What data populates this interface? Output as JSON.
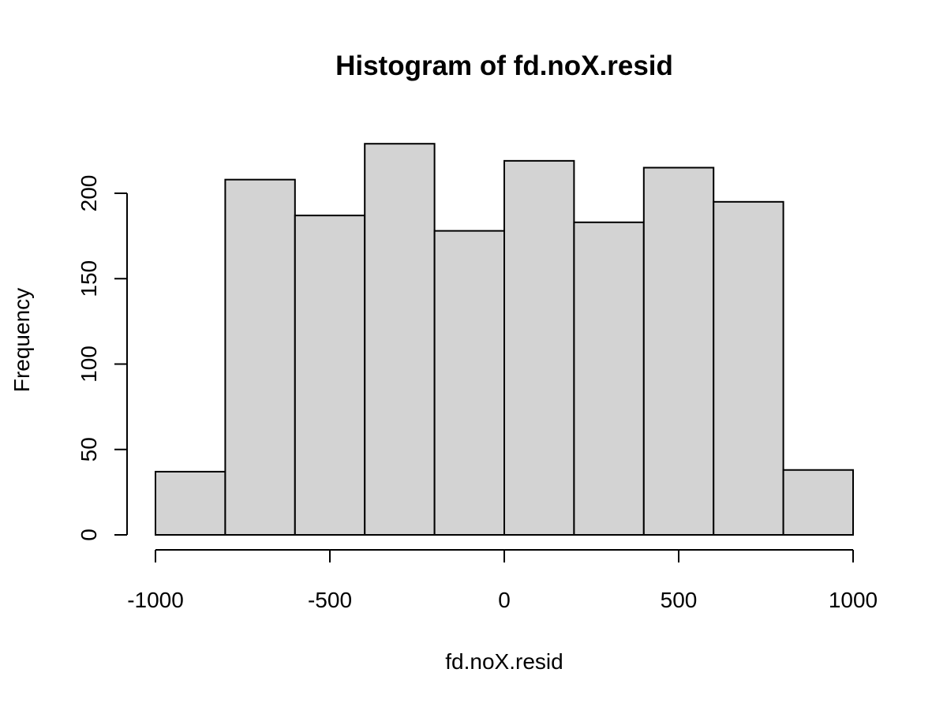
{
  "chart_data": {
    "type": "bar",
    "subtype": "histogram",
    "title": "Histogram of fd.noX.resid",
    "xlabel": "fd.noX.resid",
    "ylabel": "Frequency",
    "bins": [
      {
        "from": -1000,
        "to": -800,
        "count": 37
      },
      {
        "from": -800,
        "to": -600,
        "count": 208
      },
      {
        "from": -600,
        "to": -400,
        "count": 187
      },
      {
        "from": -400,
        "to": -200,
        "count": 229
      },
      {
        "from": -200,
        "to": 0,
        "count": 178
      },
      {
        "from": 0,
        "to": 200,
        "count": 219
      },
      {
        "from": 200,
        "to": 400,
        "count": 183
      },
      {
        "from": 400,
        "to": 600,
        "count": 215
      },
      {
        "from": 600,
        "to": 800,
        "count": 195
      },
      {
        "from": 800,
        "to": 1000,
        "count": 38
      }
    ],
    "xlim": [
      -1000,
      1000
    ],
    "ylim": [
      0,
      229
    ],
    "x_ticks": [
      -1000,
      -500,
      0,
      500,
      1000
    ],
    "x_tick_labels": [
      "-1000",
      "-500",
      "0",
      "500",
      "1000"
    ],
    "y_ticks": [
      0,
      50,
      100,
      150,
      200
    ],
    "y_tick_labels": [
      "0",
      "50",
      "100",
      "150",
      "200"
    ],
    "bar_color": "#d3d3d3",
    "edge_color": "#000000",
    "grid": false,
    "legend": "none"
  }
}
